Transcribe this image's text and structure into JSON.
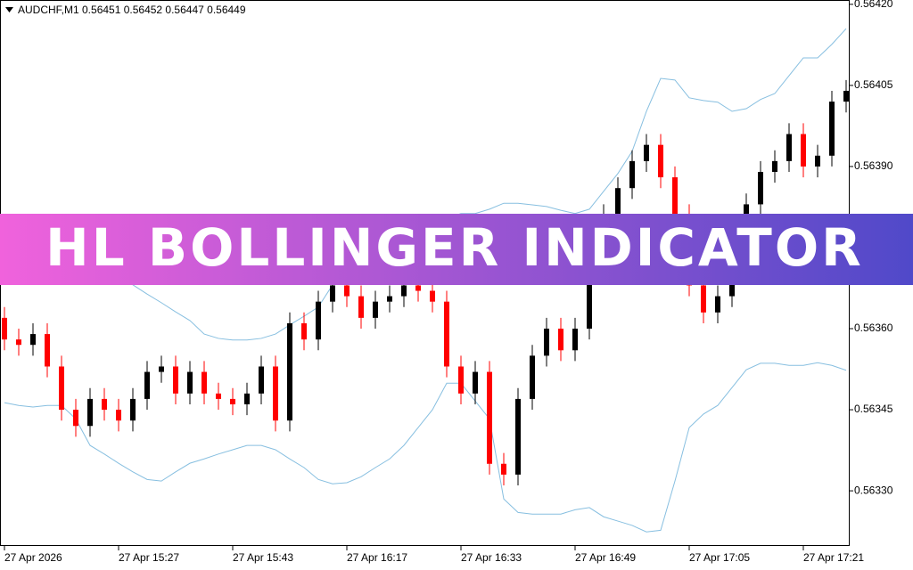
{
  "chart_data": {
    "type": "candlestick",
    "title": "AUDCHF,M1  0.56451 0.56452 0.56447 0.56449",
    "annotation": "HL BOLLINGER INDICATOR",
    "categories": [
      "27 Apr 2026",
      null,
      null,
      null,
      null,
      null,
      null,
      null,
      "27 Apr 15:27",
      null,
      null,
      null,
      null,
      null,
      null,
      null,
      "27 Apr 15:43",
      null,
      null,
      null,
      null,
      null,
      null,
      null,
      "27 Apr 16:17",
      null,
      null,
      null,
      null,
      null,
      null,
      null,
      "27 Apr 16:33",
      null,
      null,
      null,
      null,
      null,
      null,
      null,
      "27 Apr 16:49",
      null,
      null,
      null,
      null,
      null,
      null,
      null,
      "27 Apr 17:05",
      null,
      null,
      null,
      null,
      null,
      null,
      null,
      "27 Apr 17:21",
      null,
      null,
      null
    ],
    "open": [
      0.56362,
      0.56358,
      0.56357,
      0.56359,
      0.56353,
      0.56345,
      0.56342,
      0.56347,
      0.56345,
      0.56343,
      0.56347,
      0.56352,
      0.56353,
      0.56348,
      0.56352,
      0.56348,
      0.56347,
      0.56346,
      0.56348,
      0.56353,
      0.56343,
      0.56361,
      0.56358,
      0.56365,
      0.56368,
      0.56366,
      0.56362,
      0.56365,
      0.56366,
      0.56368,
      0.56367,
      0.56365,
      0.56353,
      0.56348,
      0.56352,
      0.56335,
      0.56333,
      0.56347,
      0.56355,
      0.5636,
      0.56356,
      0.5636,
      0.56371,
      0.56381,
      0.56386,
      0.56391,
      0.56394,
      0.56388,
      0.56381,
      0.56368,
      0.56363,
      0.56366,
      0.56375,
      0.56383,
      0.56389,
      0.56391,
      0.56396,
      0.5639,
      0.56392,
      0.56402
    ],
    "high": [
      0.56364,
      0.5636,
      0.56361,
      0.56361,
      0.56355,
      0.56347,
      0.56349,
      0.56349,
      0.56347,
      0.56349,
      0.56354,
      0.56355,
      0.56355,
      0.56354,
      0.56354,
      0.5635,
      0.56349,
      0.5635,
      0.56355,
      0.56355,
      0.56363,
      0.56363,
      0.56367,
      0.5637,
      0.5637,
      0.56368,
      0.56367,
      0.56368,
      0.5637,
      0.5637,
      0.56369,
      0.56367,
      0.56355,
      0.56354,
      0.56354,
      0.56337,
      0.56349,
      0.56357,
      0.56362,
      0.56362,
      0.56362,
      0.56373,
      0.56383,
      0.56388,
      0.56393,
      0.56396,
      0.56396,
      0.5639,
      0.56383,
      0.5637,
      0.56368,
      0.56377,
      0.56385,
      0.56391,
      0.56393,
      0.56398,
      0.56398,
      0.56394,
      0.56404,
      0.56406
    ],
    "low": [
      0.56356,
      0.56355,
      0.56355,
      0.56351,
      0.56343,
      0.5634,
      0.5634,
      0.56343,
      0.56341,
      0.56341,
      0.56345,
      0.5635,
      0.56346,
      0.56346,
      0.56346,
      0.56345,
      0.56344,
      0.56344,
      0.56346,
      0.56341,
      0.56341,
      0.56356,
      0.56356,
      0.56363,
      0.56364,
      0.5636,
      0.5636,
      0.56363,
      0.56364,
      0.56365,
      0.56363,
      0.56351,
      0.56346,
      0.56346,
      0.56333,
      0.56331,
      0.56331,
      0.56345,
      0.56353,
      0.56354,
      0.56354,
      0.56358,
      0.56369,
      0.56379,
      0.56384,
      0.56389,
      0.56386,
      0.56379,
      0.56366,
      0.56361,
      0.56361,
      0.56364,
      0.56373,
      0.56381,
      0.56387,
      0.56389,
      0.56388,
      0.56388,
      0.5639,
      0.564
    ],
    "close": [
      0.56358,
      0.56357,
      0.56359,
      0.56353,
      0.56345,
      0.56342,
      0.56347,
      0.56345,
      0.56343,
      0.56347,
      0.56352,
      0.56353,
      0.56348,
      0.56352,
      0.56348,
      0.56347,
      0.56346,
      0.56348,
      0.56353,
      0.56343,
      0.56361,
      0.56358,
      0.56365,
      0.56368,
      0.56366,
      0.56362,
      0.56365,
      0.56366,
      0.56368,
      0.56367,
      0.56365,
      0.56353,
      0.56348,
      0.56352,
      0.56335,
      0.56333,
      0.56347,
      0.56355,
      0.5636,
      0.56356,
      0.5636,
      0.56371,
      0.56381,
      0.56386,
      0.56391,
      0.56394,
      0.56388,
      0.56381,
      0.56368,
      0.56363,
      0.56366,
      0.56375,
      0.56383,
      0.56389,
      0.56391,
      0.56396,
      0.5639,
      0.56392,
      0.56402,
      0.56404
    ],
    "up_color": "#000000",
    "down_color": "#ff0000",
    "bands": {
      "color": "#87bfe0",
      "upper": [
        0.56373,
        0.563722,
        0.563714,
        0.563705,
        0.563697,
        0.563697,
        0.563705,
        0.563714,
        0.563697,
        0.563681,
        0.563664,
        0.563648,
        0.563631,
        0.563615,
        0.56359,
        0.563582,
        0.563579,
        0.563579,
        0.563582,
        0.56359,
        0.563607,
        0.563623,
        0.56364,
        0.563681,
        0.563714,
        0.563738,
        0.563763,
        0.56378,
        0.563788,
        0.563796,
        0.563804,
        0.563804,
        0.563813,
        0.563813,
        0.563821,
        0.563832,
        0.563832,
        0.563829,
        0.563826,
        0.563819,
        0.563813,
        0.563821,
        0.563854,
        0.563887,
        0.563928,
        0.564002,
        0.564063,
        0.56406,
        0.564027,
        0.564022,
        0.564019,
        0.564002,
        0.564007,
        0.564024,
        0.564035,
        0.564068,
        0.564101,
        0.564101,
        0.564126,
        0.564155
      ],
      "lower": [
        0.563463,
        0.563458,
        0.563455,
        0.563458,
        0.563458,
        0.563433,
        0.563384,
        0.563368,
        0.563351,
        0.563335,
        0.563321,
        0.563318,
        0.563335,
        0.563351,
        0.563359,
        0.563368,
        0.563376,
        0.563384,
        0.563384,
        0.563376,
        0.563359,
        0.563343,
        0.563321,
        0.563313,
        0.563315,
        0.563326,
        0.563343,
        0.563359,
        0.563384,
        0.563417,
        0.56345,
        0.563499,
        0.563499,
        0.563466,
        0.563433,
        0.563285,
        0.56326,
        0.563257,
        0.563257,
        0.563257,
        0.563265,
        0.563269,
        0.563252,
        0.563244,
        0.563236,
        0.563224,
        0.563227,
        0.563318,
        0.563417,
        0.563442,
        0.563458,
        0.563491,
        0.563524,
        0.563536,
        0.563536,
        0.563532,
        0.563532,
        0.563537,
        0.563532,
        0.563523
      ]
    },
    "ylim": [
      0.563198,
      0.564208
    ],
    "yticks": [
      {
        "value": 0.5642,
        "label": "0.56420"
      },
      0.56405,
      {
        "value": 0.5639,
        "label": "0.56390"
      },
      {
        "value": 0.5636,
        "label": "0.56360"
      },
      0.56345,
      {
        "value": 0.5633,
        "label": "0.56330"
      }
    ]
  }
}
